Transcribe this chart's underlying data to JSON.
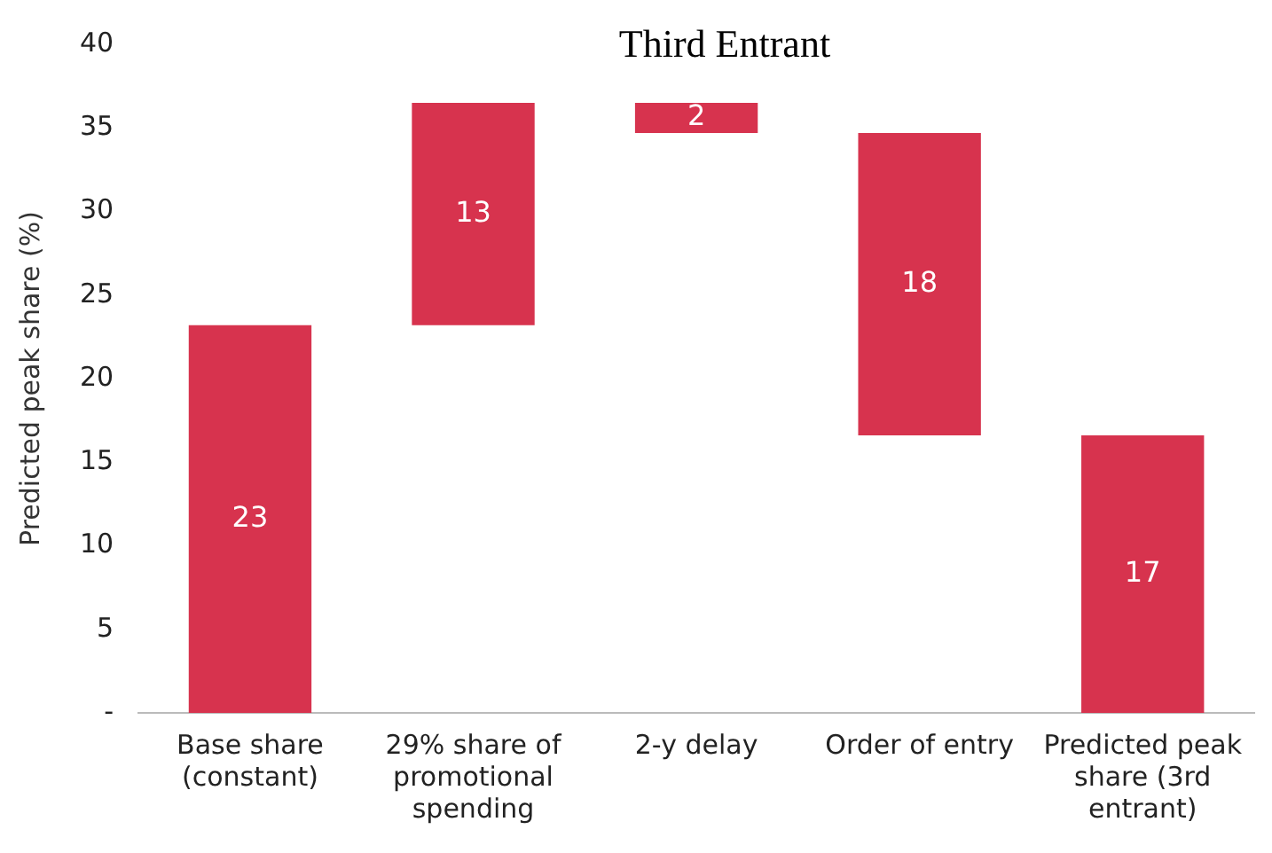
{
  "chart_data": {
    "type": "bar",
    "title": "Third Entrant",
    "ylabel": "Predicted peak share (%)",
    "categories": [
      "Base share (constant)",
      "29% share of promotional spending",
      "2-y delay",
      "Order of entry",
      "Predicted peak share (3rd entrant)"
    ],
    "values": [
      23.2,
      13.3,
      -1.8,
      -18.1,
      16.6
    ],
    "base": [
      0,
      23.2,
      36.5,
      34.7,
      0
    ],
    "value_labels": [
      "23",
      "13",
      "2",
      "18",
      "17"
    ],
    "color": "#d7334e",
    "ylim": [
      0,
      40
    ],
    "yticks": [
      {
        "value": 0,
        "label": "-"
      },
      5,
      10,
      15,
      20,
      25,
      30,
      35,
      40
    ],
    "grid": false,
    "legend": false
  }
}
